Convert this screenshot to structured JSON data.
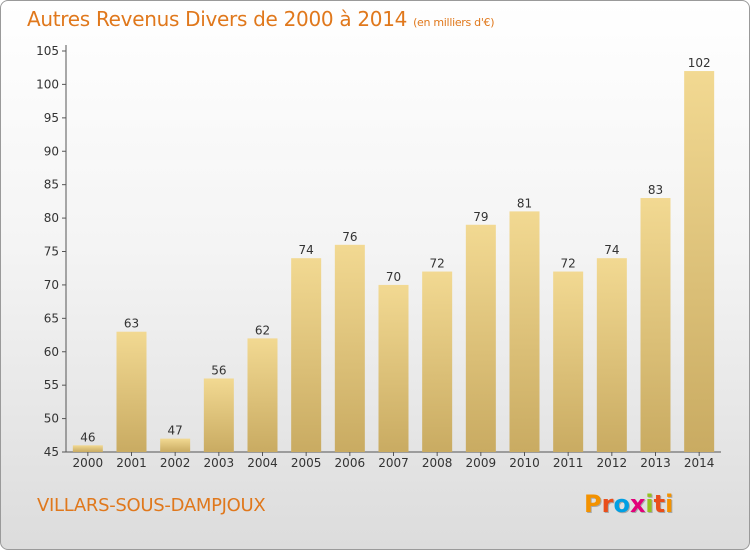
{
  "header": {
    "title": "Autres Revenus Divers de 2000 à 2014",
    "unit": "(en milliers d'€)"
  },
  "footer": {
    "commune": "VILLARS-SOUS-DAMPJOUX",
    "logo_letters": [
      "P",
      "r",
      "o",
      "x",
      "i",
      "t",
      "i"
    ],
    "logo_colors": [
      "#f39200",
      "#e94e1b",
      "#009fe3",
      "#e2007a",
      "#95c11f",
      "#e94e1b",
      "#f39200"
    ]
  },
  "chart_data": {
    "type": "bar",
    "title": "Autres Revenus Divers de 2000 à 2014",
    "subtitle": "(en milliers d'€)",
    "xlabel": "",
    "ylabel": "",
    "categories": [
      "2000",
      "2001",
      "2002",
      "2003",
      "2004",
      "2005",
      "2006",
      "2007",
      "2008",
      "2009",
      "2010",
      "2011",
      "2012",
      "2013",
      "2014"
    ],
    "values": [
      46,
      63,
      47,
      56,
      62,
      74,
      76,
      70,
      72,
      79,
      81,
      72,
      74,
      83,
      102
    ],
    "ylim": [
      45,
      105
    ],
    "yticks": [
      45,
      50,
      55,
      60,
      65,
      70,
      75,
      80,
      85,
      90,
      95,
      100,
      105
    ],
    "grid": false,
    "legend": "none",
    "bar_color_light": "#f2d992",
    "bar_color_dark": "#c9ab62",
    "text_color": "#333333"
  }
}
